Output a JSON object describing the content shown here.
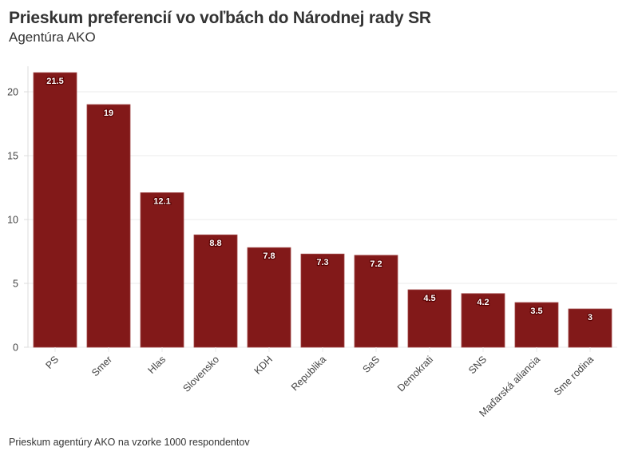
{
  "header": {
    "title": "Prieskum preferencií vo voľbách do Národnej rady SR",
    "subtitle": "Agentúra AKO"
  },
  "footer": {
    "caption": "Prieskum agentúry AKO na vzorke 1000 respondentov"
  },
  "colors": {
    "bar": "#821919",
    "bar_border": "#a04545",
    "grid": "#ebebeb",
    "axis": "#dddddd",
    "text": "#333333"
  },
  "chart_data": {
    "type": "bar",
    "title": "Prieskum preferencií vo voľbách do Národnej rady SR",
    "subtitle": "Agentúra AKO",
    "xlabel": "",
    "ylabel": "",
    "categories": [
      "PS",
      "Smer",
      "Hlas",
      "Slovensko",
      "KDH",
      "Republika",
      "SaS",
      "Demokrati",
      "SNS",
      "Maďarská aliancia",
      "Sme rodina"
    ],
    "values": [
      21.5,
      19,
      12.1,
      8.8,
      7.8,
      7.3,
      7.2,
      4.5,
      4.2,
      3.5,
      3
    ],
    "value_labels": [
      "21.5",
      "19",
      "12.1",
      "8.8",
      "7.8",
      "7.3",
      "7.2",
      "4.5",
      "4.2",
      "3.5",
      "3"
    ],
    "ylim": [
      0,
      22
    ],
    "yticks": [
      0,
      5,
      10,
      15,
      20
    ],
    "ytick_labels": [
      "0",
      "5",
      "10",
      "15",
      "20"
    ],
    "grid": true,
    "legend": "none"
  }
}
